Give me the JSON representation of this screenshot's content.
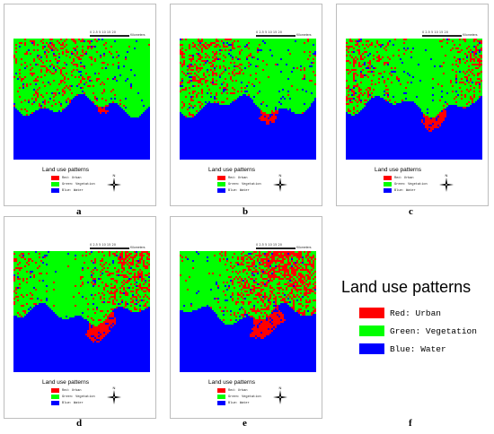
{
  "panels": [
    {
      "id": "a",
      "label": "a",
      "legend_title": "Land use patterns",
      "scale_ticks": "0 2.5 5    10    15    20",
      "scale_unit": "Kilometers",
      "north": "N",
      "urban": 0.25,
      "water_line": 0.55
    },
    {
      "id": "b",
      "label": "b",
      "legend_title": "Land use patterns",
      "scale_ticks": "0 2.5 5    10    15    20",
      "scale_unit": "Kilometers",
      "north": "N",
      "urban": 0.35,
      "water_line": 0.55
    },
    {
      "id": "c",
      "label": "c",
      "legend_title": "Land use patterns",
      "scale_ticks": "0 2.5 5    10    15    20",
      "scale_unit": "Kilometers",
      "north": "N",
      "urban": 0.45,
      "water_line": 0.55
    },
    {
      "id": "d",
      "label": "d",
      "legend_title": "Land use patterns",
      "scale_ticks": "0 2.5 5    10    15    20",
      "scale_unit": "Kilometers",
      "north": "N",
      "urban": 0.55,
      "water_line": 0.52
    },
    {
      "id": "e",
      "label": "e",
      "legend_title": "Land use patterns",
      "scale_ticks": "0 2.5 5    10    15    20",
      "scale_unit": "Kilometers",
      "north": "N",
      "urban": 0.65,
      "water_line": 0.52
    }
  ],
  "small_legend": [
    {
      "label": "Red:  Urban",
      "color": "#ff0000"
    },
    {
      "label": "Green: Vegetation",
      "color": "#00ff00"
    },
    {
      "label": "Blue:  Water",
      "color": "#0000ff"
    }
  ],
  "big_legend": {
    "title": "Land use patterns",
    "label_f": "f",
    "items": [
      {
        "label": "Red:  Urban",
        "color": "#ff0000"
      },
      {
        "label": "Green: Vegetation",
        "color": "#00ff00"
      },
      {
        "label": "Blue:  Water",
        "color": "#0000ff"
      }
    ]
  },
  "colors": {
    "urban": "#ff0000",
    "vegetation": "#00ff00",
    "water": "#0000ff"
  }
}
